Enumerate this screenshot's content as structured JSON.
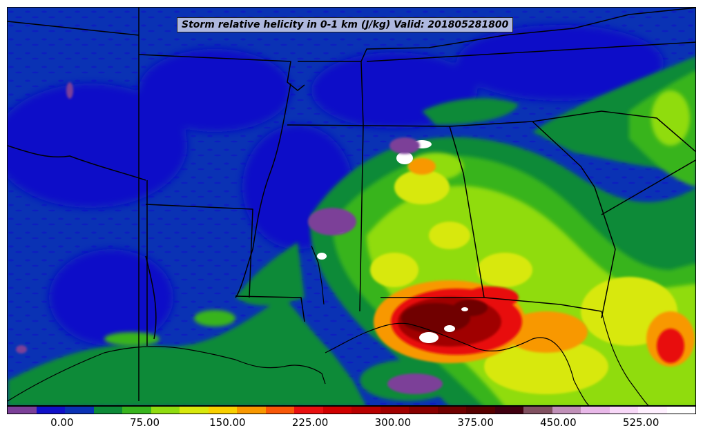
{
  "title": "Storm relative helicity in 0-1 km (J/kg) Valid: 201805281800",
  "colorbar": {
    "colors": [
      "#7b3f98",
      "#1010c8",
      "#0a32b4",
      "#0c8a38",
      "#38b41e",
      "#90dc10",
      "#d8e80c",
      "#f8d000",
      "#f89800",
      "#f85808",
      "#e81010",
      "#d00000",
      "#b80000",
      "#a00000",
      "#880000",
      "#700000",
      "#580000",
      "#400010",
      "#805060",
      "#c090b8",
      "#e8b8e8",
      "#f8d8f8",
      "#fff0ff",
      "#ffffff"
    ],
    "tick_labels": [
      "0.00",
      "75.00",
      "150.00",
      "225.00",
      "300.00",
      "375.00",
      "450.00",
      "525.00"
    ],
    "tick_values": [
      0,
      75,
      150,
      225,
      300,
      375,
      450,
      525
    ],
    "range": [
      -50,
      575
    ]
  }
}
